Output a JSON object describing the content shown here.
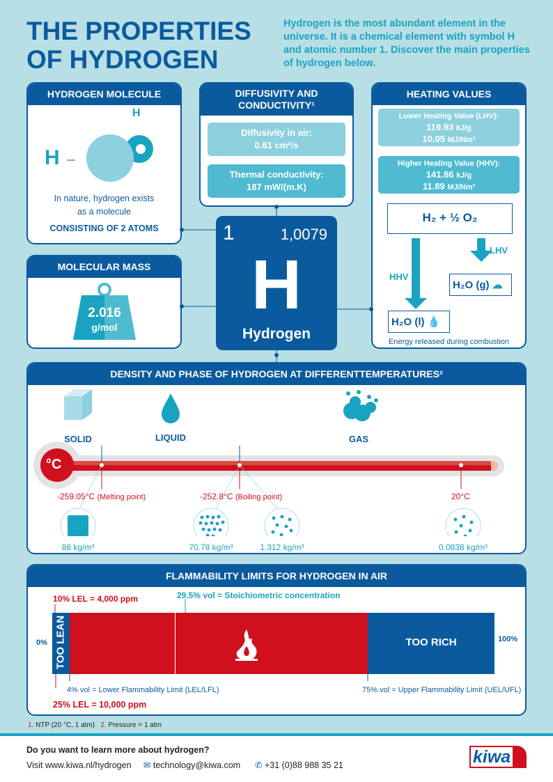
{
  "title": [
    "THE PROPERTIES",
    "OF HYDROGEN"
  ],
  "intro": "Hydrogen is the most abundant element in the universe. It is a chemical element with symbol H and atomic number 1. Discover the main properties of hydrogen below.",
  "molecule": {
    "header": "HYDROGEN MOLECULE",
    "atom_label": "H",
    "text1": "In nature, hydrogen exists",
    "text2": "as a molecule",
    "text3": "CONSISTING OF 2 ATOMS"
  },
  "diffusivity": {
    "header": "DIFFUSIVITY AND CONDUCTIVITY¹",
    "air_label": "Diffusivity in air:",
    "air_value": "0.61 cm²/s",
    "cond_label": "Thermal conductivity:",
    "cond_value": "187 mW/(m.K)"
  },
  "heating": {
    "header": "HEATING VALUES",
    "lhv_label": "Lower Heating Value (LHV):",
    "lhv_1": "119.93",
    "lhv_1u": "kJ/g",
    "lhv_2": "10.05",
    "lhv_2u": "MJ/Nm³",
    "hhv_label": "Higher Heating Value (HHV):",
    "hhv_1": "141.86",
    "hhv_1u": "kJ/g",
    "hhv_2": "11.89",
    "hhv_2u": "MJ/Nm³",
    "reaction": "H₂ + ½ O₂",
    "lhv": "LHV",
    "hhv": "HHV",
    "gas": "H₂O (g)",
    "liquid": "H₂O (l)",
    "caption": "Energy released during combustion"
  },
  "mass": {
    "header": "MOLECULAR MASS",
    "value": "2.016",
    "unit": "g/mol"
  },
  "element": {
    "number": "1",
    "weight": "1,0079",
    "symbol": "H",
    "name": "Hydrogen"
  },
  "density": {
    "header": "DENSITY AND PHASE OF HYDROGEN AT DIFFERENTTEMPERATURES²",
    "phases": [
      "SOLID",
      "LIQUID",
      "GAS"
    ],
    "unit_symbol": "°C",
    "melting": "-259.05°C",
    "melting_note": "(Melting point)",
    "boiling": "-252.8°C",
    "boiling_note": "(Boiling point)",
    "room": "20°C",
    "densities": [
      "88 kg/m³",
      "70.78 kg/m³",
      "1.312 kg/m³",
      "0.0838 kg/m³"
    ]
  },
  "flammability": {
    "header": "FLAMMABILITY LIMITS FOR HYDROGEN IN AIR",
    "lel10": "10% LEL = 4,000 ppm",
    "stoich": "29.5% vol = Stoichiometric concentration",
    "zero": "0%",
    "hundred": "100%",
    "too_lean": "TOO LEAN",
    "too_rich": "TOO RICH",
    "lel": "4% vol = Lower Flammability Limit (LEL/LFL)",
    "uel": "75% vol = Upper Flammability Limit (UEL/UFL)",
    "lel25": "25% LEL = 10,000 ppm",
    "lel_pct": 4,
    "stoich_pct": 29.5,
    "uel_pct": 75
  },
  "footnotes": {
    "n1": "1.",
    "t1": "NTP (20 °C, 1 atm)",
    "n2": "2.",
    "t2": "Pressure = 1 atm"
  },
  "footer": {
    "question": "Do you want to learn more about hydrogen?",
    "visit": "Visit www.kiwa.nl/hydrogen",
    "email": "technology@kiwa.com",
    "phone": "+31 (0)88 988 35 21",
    "logo": "kiwa"
  },
  "colors": {
    "dark_blue": "#0b5a9e",
    "teal": "#1aa3c0",
    "red": "#d0101c",
    "background": "#b7dfe5"
  }
}
